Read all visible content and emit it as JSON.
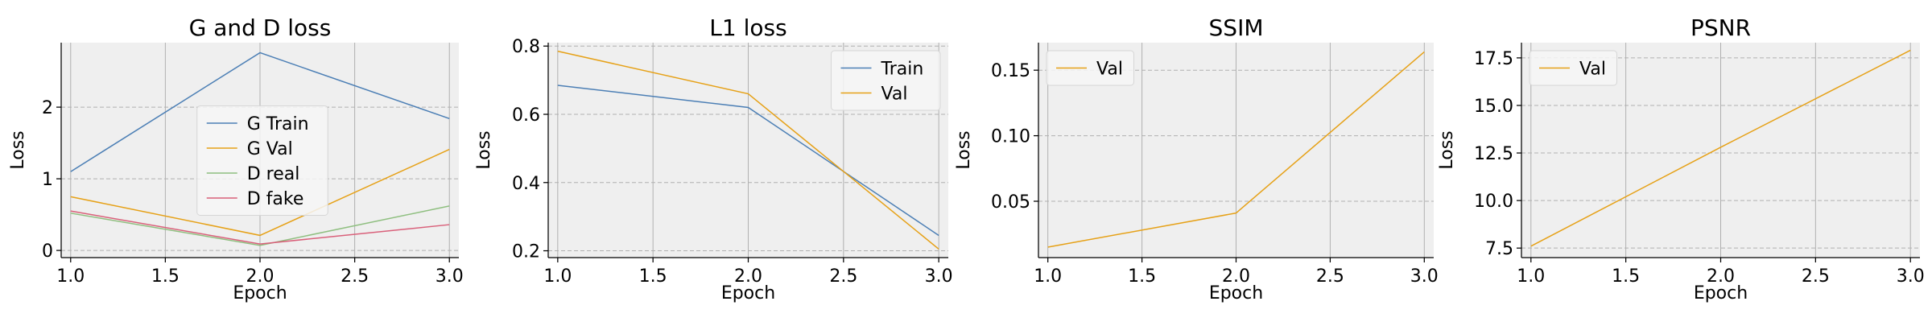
{
  "chart_data": [
    {
      "type": "line",
      "title": "G and D loss",
      "xlabel": "Epoch",
      "ylabel": "Loss",
      "x": [
        1.0,
        2.0,
        3.0
      ],
      "xlim": [
        0.95,
        3.05
      ],
      "ylim": [
        -0.1,
        2.9
      ],
      "xticks": [
        1.0,
        1.5,
        2.0,
        2.5,
        3.0
      ],
      "xtick_labels": [
        "1.0",
        "1.5",
        "2.0",
        "2.5",
        "3.0"
      ],
      "yticks": [
        0,
        1,
        2
      ],
      "ytick_labels": [
        "0",
        "1",
        "2"
      ],
      "legend_position": "center",
      "series": [
        {
          "name": "G Train",
          "values": [
            1.1,
            2.76,
            1.84
          ],
          "color": "#4c7fb5"
        },
        {
          "name": "G Val",
          "values": [
            0.75,
            0.21,
            1.41
          ],
          "color": "#e6a117"
        },
        {
          "name": "D real",
          "values": [
            0.52,
            0.07,
            0.62
          ],
          "color": "#8fbf80"
        },
        {
          "name": "D fake",
          "values": [
            0.55,
            0.09,
            0.36
          ],
          "color": "#d9607a"
        }
      ],
      "grid": true
    },
    {
      "type": "line",
      "title": "L1 loss",
      "xlabel": "Epoch",
      "ylabel": "Loss",
      "x": [
        1.0,
        2.0,
        3.0
      ],
      "xlim": [
        0.95,
        3.05
      ],
      "ylim": [
        0.18,
        0.81
      ],
      "xticks": [
        1.0,
        1.5,
        2.0,
        2.5,
        3.0
      ],
      "xtick_labels": [
        "1.0",
        "1.5",
        "2.0",
        "2.5",
        "3.0"
      ],
      "yticks": [
        0.2,
        0.4,
        0.6,
        0.8
      ],
      "ytick_labels": [
        "0.2",
        "0.4",
        "0.6",
        "0.8"
      ],
      "legend_position": "top-right",
      "series": [
        {
          "name": "Train",
          "values": [
            0.685,
            0.62,
            0.245
          ],
          "color": "#4c7fb5"
        },
        {
          "name": "Val",
          "values": [
            0.785,
            0.66,
            0.205
          ],
          "color": "#e6a117"
        }
      ],
      "grid": true
    },
    {
      "type": "line",
      "title": "SSIM",
      "xlabel": "Epoch",
      "ylabel": "Loss",
      "x": [
        1.0,
        2.0,
        3.0
      ],
      "xlim": [
        0.95,
        3.05
      ],
      "ylim": [
        0.007,
        0.171
      ],
      "xticks": [
        1.0,
        1.5,
        2.0,
        2.5,
        3.0
      ],
      "xtick_labels": [
        "1.0",
        "1.5",
        "2.0",
        "2.5",
        "3.0"
      ],
      "yticks": [
        0.05,
        0.1,
        0.15
      ],
      "ytick_labels": [
        "0.05",
        "0.10",
        "0.15"
      ],
      "legend_position": "top-left",
      "series": [
        {
          "name": "Val",
          "values": [
            0.015,
            0.041,
            0.164
          ],
          "color": "#e6a117"
        }
      ],
      "grid": true
    },
    {
      "type": "line",
      "title": "PSNR",
      "xlabel": "Epoch",
      "ylabel": "Loss",
      "x": [
        1.0,
        2.0,
        3.0
      ],
      "xlim": [
        0.95,
        3.05
      ],
      "ylim": [
        7.0,
        18.3
      ],
      "xticks": [
        1.0,
        1.5,
        2.0,
        2.5,
        3.0
      ],
      "xtick_labels": [
        "1.0",
        "1.5",
        "2.0",
        "2.5",
        "3.0"
      ],
      "yticks": [
        7.5,
        10.0,
        12.5,
        15.0,
        17.5
      ],
      "ytick_labels": [
        "7.5",
        "10.0",
        "12.5",
        "15.0",
        "17.5"
      ],
      "legend_position": "top-left",
      "series": [
        {
          "name": "Val",
          "values": [
            7.6,
            12.8,
            17.9
          ],
          "color": "#e6a117"
        }
      ],
      "grid": true
    }
  ]
}
